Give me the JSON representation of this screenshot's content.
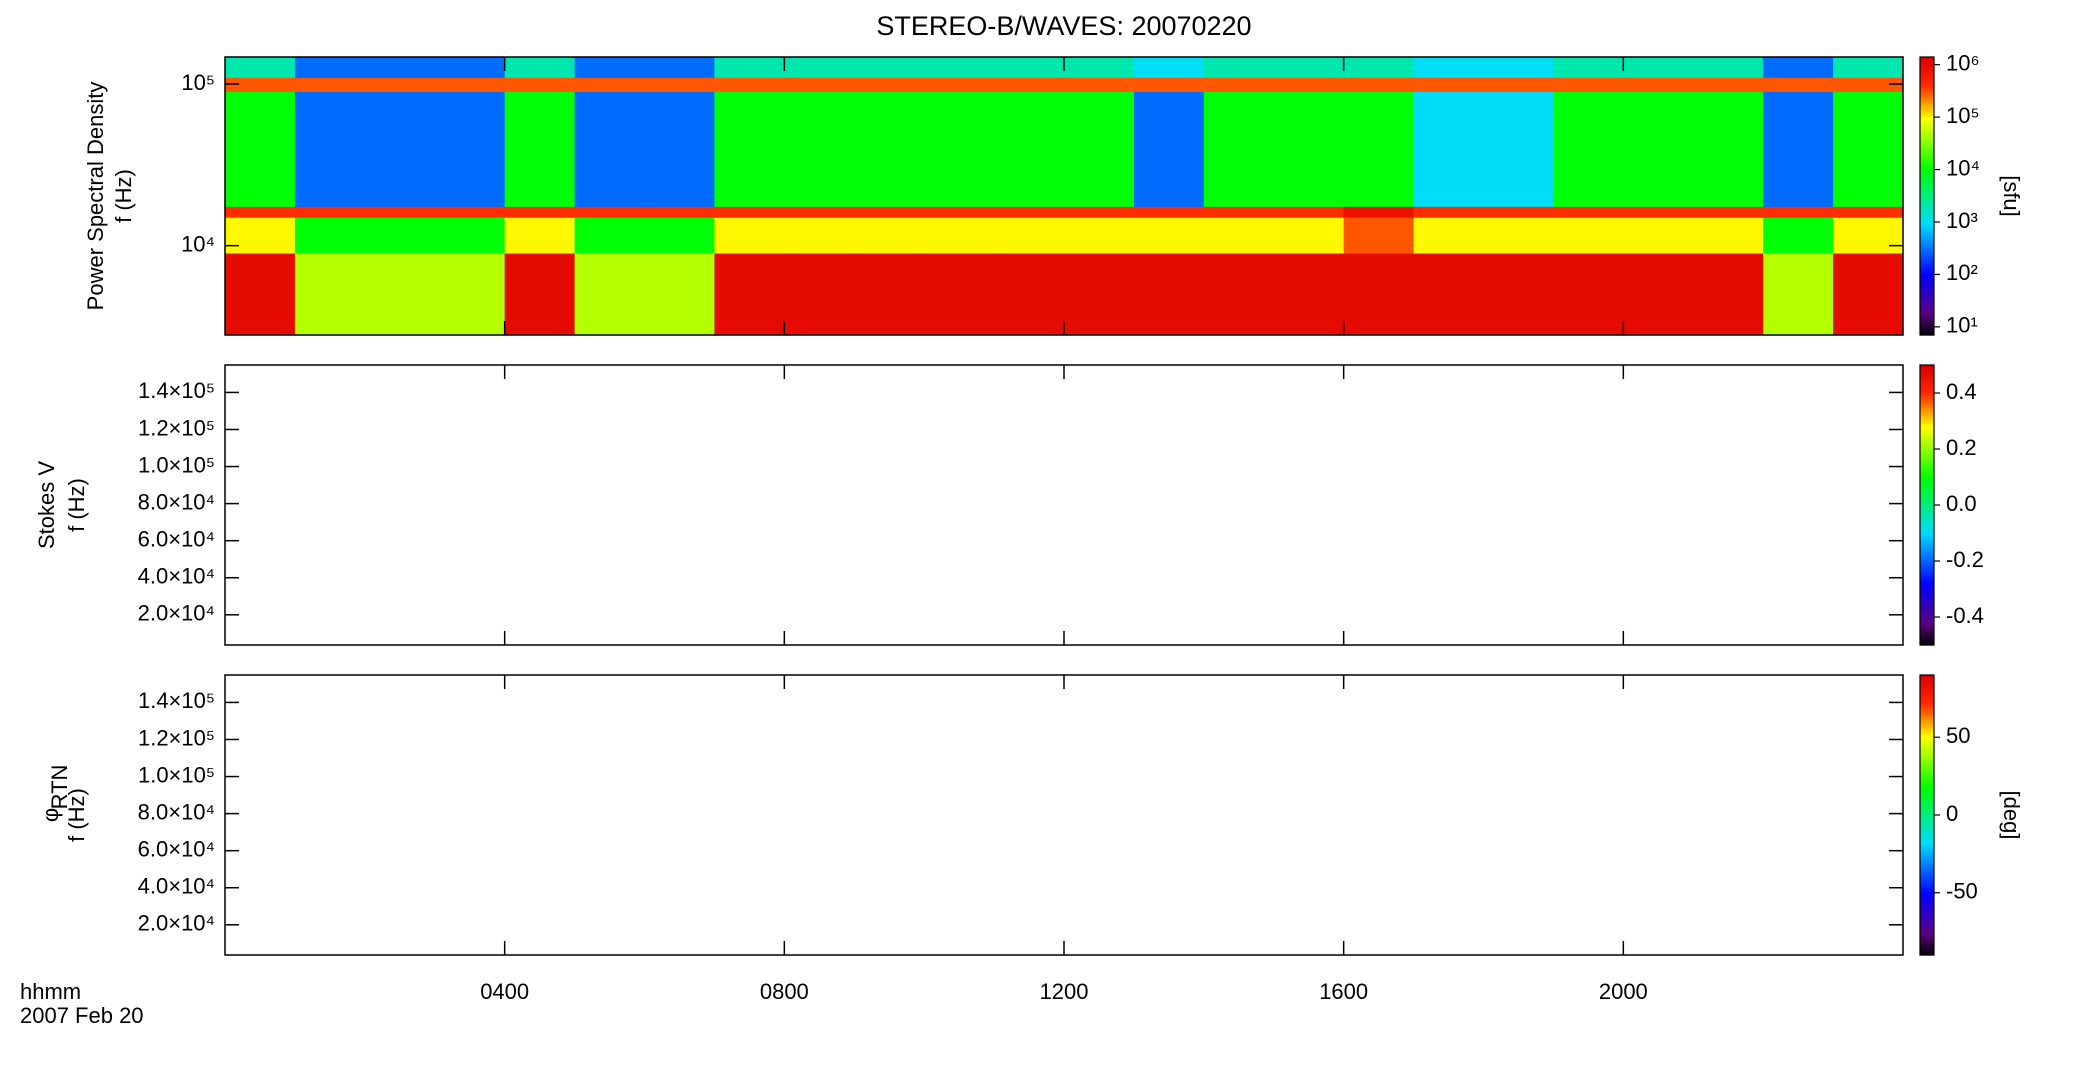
{
  "chart_data": [
    {
      "type": "heatmap",
      "title": "STEREO-B/WAVES: 20070220",
      "ylabel": [
        "Power Spectral Density",
        "f (Hz)"
      ],
      "xlim": [
        0,
        24
      ],
      "xticks": [
        4,
        8,
        12,
        16,
        20
      ],
      "ylim": [
        2800,
        147000
      ],
      "ylog": true,
      "yticks": [
        {
          "value": 10000,
          "label": "10⁴"
        },
        {
          "value": 100000,
          "label": "10⁵"
        }
      ],
      "x_bins": [
        0,
        1,
        2,
        3,
        4,
        5,
        6,
        7,
        8,
        9,
        10,
        11,
        12,
        13,
        14,
        15,
        16,
        17,
        18,
        19,
        20,
        21,
        22,
        23,
        24
      ],
      "y_bins": [
        2800,
        9000,
        15000,
        17500,
        90000,
        110000,
        147000
      ],
      "values": [
        [
          1000000,
          50000,
          50000,
          50000,
          1000000,
          50000,
          50000,
          1000000,
          1000000,
          1000000,
          1000000,
          1000000,
          1000000,
          1000000,
          1000000,
          1000000,
          1000000,
          1000000,
          1000000,
          1000000,
          1000000,
          1000000,
          50000,
          1000000
        ],
        [
          100000,
          10000,
          10000,
          10000,
          100000,
          10000,
          10000,
          100000,
          100000,
          100000,
          100000,
          100000,
          100000,
          100000,
          100000,
          100000,
          300000,
          100000,
          100000,
          100000,
          100000,
          100000,
          10000,
          100000
        ],
        [
          400000,
          400000,
          400000,
          400000,
          400000,
          400000,
          400000,
          400000,
          400000,
          400000,
          400000,
          400000,
          400000,
          400000,
          400000,
          400000,
          800000,
          400000,
          400000,
          400000,
          400000,
          400000,
          400000,
          400000
        ],
        [
          10000,
          300,
          300,
          300,
          10000,
          300,
          300,
          10000,
          10000,
          10000,
          10000,
          10000,
          10000,
          300,
          10000,
          10000,
          10000,
          1000,
          1000,
          10000,
          10000,
          10000,
          300,
          10000
        ],
        [
          300000,
          300000,
          300000,
          300000,
          300000,
          300000,
          300000,
          300000,
          300000,
          300000,
          300000,
          300000,
          300000,
          300000,
          300000,
          300000,
          300000,
          300000,
          300000,
          300000,
          300000,
          300000,
          300000,
          300000
        ],
        [
          2000,
          300,
          300,
          300,
          2000,
          300,
          300,
          2000,
          2000,
          2000,
          2000,
          2000,
          2000,
          1000,
          2000,
          2000,
          2000,
          1000,
          1000,
          2000,
          2000,
          2000,
          300,
          2000
        ]
      ],
      "colormap": "rainbow",
      "clim": [
        7,
        1400000
      ],
      "clog": true,
      "cticks": [
        {
          "value": 10,
          "label": "10¹"
        },
        {
          "value": 100,
          "label": "10²"
        },
        {
          "value": 1000,
          "label": "10³"
        },
        {
          "value": 10000,
          "label": "10⁴"
        },
        {
          "value": 100000,
          "label": "10⁵"
        },
        {
          "value": 1000000,
          "label": "10⁶"
        }
      ],
      "clabel": "[sfu]"
    },
    {
      "type": "heatmap",
      "ylabel": [
        "Stokes V",
        "f (Hz)"
      ],
      "xlim": [
        0,
        24
      ],
      "xticks": [
        4,
        8,
        12,
        16,
        20
      ],
      "ylim": [
        3700,
        154800
      ],
      "yticks": [
        {
          "value": 20000,
          "label": "2.0×10⁴"
        },
        {
          "value": 40000,
          "label": "4.0×10⁴"
        },
        {
          "value": 60000,
          "label": "6.0×10⁴"
        },
        {
          "value": 80000,
          "label": "8.0×10⁴"
        },
        {
          "value": 100000,
          "label": "1.0×10⁵"
        },
        {
          "value": 120000,
          "label": "1.2×10⁵"
        },
        {
          "value": 140000,
          "label": "1.4×10⁵"
        }
      ],
      "colormap": "rainbow",
      "clim": [
        -0.5,
        0.5
      ],
      "cticks": [
        {
          "value": -0.4,
          "label": "-0.4"
        },
        {
          "value": -0.2,
          "label": "-0.2"
        },
        {
          "value": 0,
          "label": "0.0"
        },
        {
          "value": 0.2,
          "label": "0.2"
        },
        {
          "value": 0.4,
          "label": "0.4"
        }
      ]
    },
    {
      "type": "heatmap",
      "ylabel": [
        "φ",
        "f (Hz)"
      ],
      "ylabel_subscript": "RTN",
      "xlim": [
        0,
        24
      ],
      "xticks": [
        {
          "value": 4,
          "label": "0400"
        },
        {
          "value": 8,
          "label": "0800"
        },
        {
          "value": 12,
          "label": "1200"
        },
        {
          "value": 16,
          "label": "1600"
        },
        {
          "value": 20,
          "label": "2000"
        }
      ],
      "xlabel": "hhmm",
      "date": "2007 Feb 20",
      "ylim": [
        3700,
        154800
      ],
      "yticks": [
        {
          "value": 20000,
          "label": "2.0×10⁴"
        },
        {
          "value": 40000,
          "label": "4.0×10⁴"
        },
        {
          "value": 60000,
          "label": "6.0×10⁴"
        },
        {
          "value": 80000,
          "label": "8.0×10⁴"
        },
        {
          "value": 100000,
          "label": "1.0×10⁵"
        },
        {
          "value": 120000,
          "label": "1.2×10⁵"
        },
        {
          "value": 140000,
          "label": "1.4×10⁵"
        }
      ],
      "colormap": "rainbow",
      "clim": [
        -90,
        90
      ],
      "cticks": [
        -50,
        0,
        50
      ],
      "clabel": "[deg]"
    }
  ]
}
